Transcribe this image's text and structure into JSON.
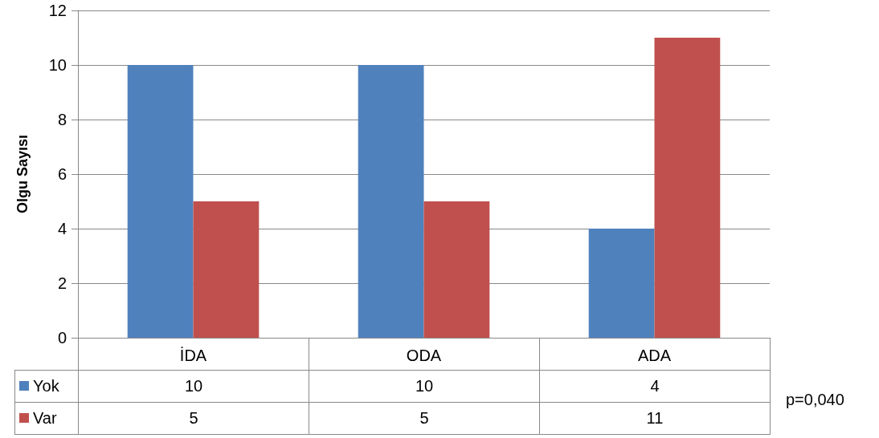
{
  "chart_data": {
    "type": "bar",
    "ylabel": "Olgu Sayısı",
    "categories": [
      "İDA",
      "ODA",
      "ADA"
    ],
    "series": [
      {
        "name": "Yok",
        "color": "#4f81bd",
        "values": [
          10,
          10,
          4
        ]
      },
      {
        "name": "Var",
        "color": "#c0504d",
        "values": [
          5,
          5,
          11
        ]
      }
    ],
    "ylim": [
      0,
      12
    ],
    "yticks": [
      0,
      2,
      4,
      6,
      8,
      10,
      12
    ],
    "grid": "y",
    "legend": "bottom left",
    "data_labels": true,
    "annotations": [
      "p=0,040"
    ]
  }
}
